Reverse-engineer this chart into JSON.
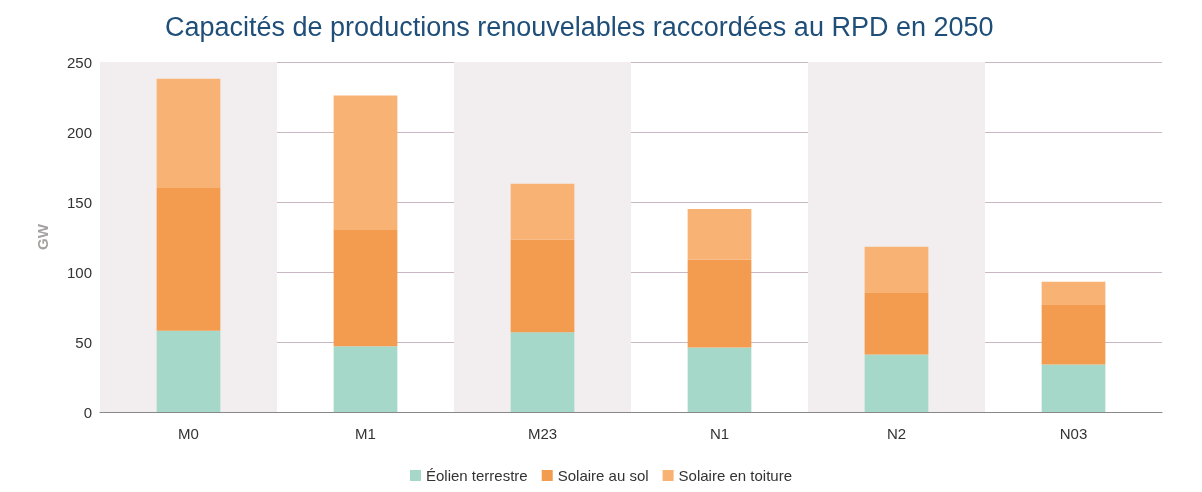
{
  "chart_data": {
    "type": "bar",
    "title": "Capacités de productions renouvelables raccordées au RPD en 2050",
    "ylabel": "GW",
    "categories": [
      "M0",
      "M1",
      "M23",
      "N1",
      "N2",
      "N03"
    ],
    "stacked": true,
    "series": [
      {
        "name": "Éolien terrestre",
        "color": "#a5d8c9",
        "values": [
          58,
          47,
          57,
          46,
          41,
          34
        ]
      },
      {
        "name": "Solaire au sol",
        "color": "#f39c4f",
        "values": [
          102,
          83,
          66,
          63,
          44,
          43
        ]
      },
      {
        "name": "Solaire en toiture",
        "color": "#f8b274",
        "values": [
          78,
          96,
          40,
          36,
          33,
          16
        ]
      }
    ],
    "ylim": [
      0,
      250
    ],
    "yticks": [
      0,
      50,
      100,
      150,
      200,
      250
    ],
    "grid": "y",
    "legend": "bottom",
    "bands": [
      {
        "axis": "x",
        "from": "M0",
        "to": "M0",
        "color": "#f2eeef"
      },
      {
        "axis": "x",
        "from": "M23",
        "to": "M23",
        "color": "#f2eeef"
      },
      {
        "axis": "x",
        "from": "N2",
        "to": "N2",
        "color": "#f2eeef"
      }
    ]
  }
}
